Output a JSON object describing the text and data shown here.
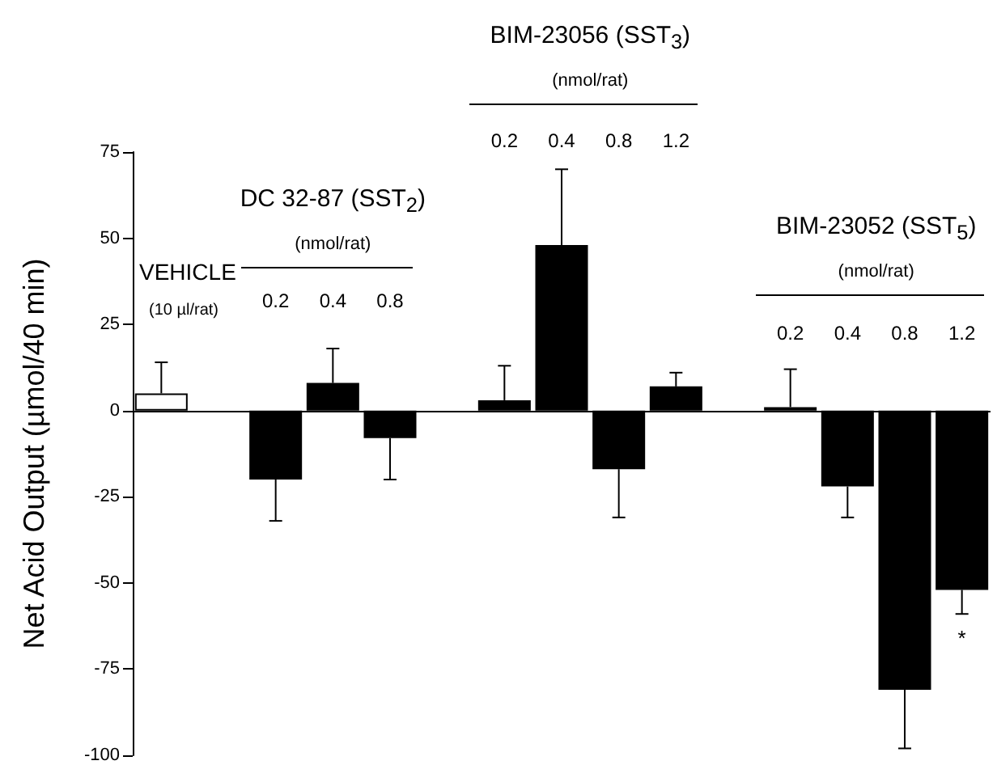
{
  "chart_data": {
    "type": "bar",
    "ylabel": "Net Acid Output (µmol/40 min)",
    "categories": [
      "VEHICLE",
      null,
      "0.2",
      "0.4",
      "0.8",
      null,
      "0.2",
      "0.4",
      "0.8",
      "1.2",
      null,
      "0.2",
      "0.4",
      "0.8",
      "1.2"
    ],
    "series": [
      {
        "color": "#000000",
        "colors": [
          "#ffffff",
          null,
          "#000000",
          "#000000",
          "#000000",
          null,
          "#000000",
          "#000000",
          "#000000",
          "#000000",
          null,
          "#000000",
          "#000000",
          "#000000",
          "#000000"
        ],
        "values": [
          5,
          null,
          -20,
          8,
          -8,
          null,
          3,
          48,
          -17,
          7,
          null,
          1,
          -22,
          -81,
          -52
        ],
        "errors": [
          [
            5,
            14
          ],
          null,
          [
            -32,
            -20
          ],
          [
            8,
            18
          ],
          [
            -20,
            -8
          ],
          null,
          [
            3,
            13
          ],
          [
            48,
            70
          ],
          [
            -31,
            -17
          ],
          [
            7,
            11
          ],
          null,
          [
            1,
            12
          ],
          [
            -31,
            -22
          ],
          [
            -98,
            -81
          ],
          [
            -59,
            -52
          ]
        ]
      }
    ],
    "ylim": [
      -100,
      75
    ],
    "yticks": [
      -100,
      -75,
      -50,
      -25,
      0,
      25,
      50,
      75
    ],
    "grid": false,
    "ref_lines": [
      {
        "axis": "y",
        "value": 0,
        "color": "#000000"
      }
    ],
    "annotations": [
      "(10 µl/rat)",
      "DC 32-87 (SST$_{2}$)",
      "(nmol/rat)",
      "BIM-23056 (SST$_{3}$)",
      "(nmol/rat)",
      "BIM-23052 (SST$_{5}$)",
      "(nmol/rat)",
      "*"
    ]
  }
}
